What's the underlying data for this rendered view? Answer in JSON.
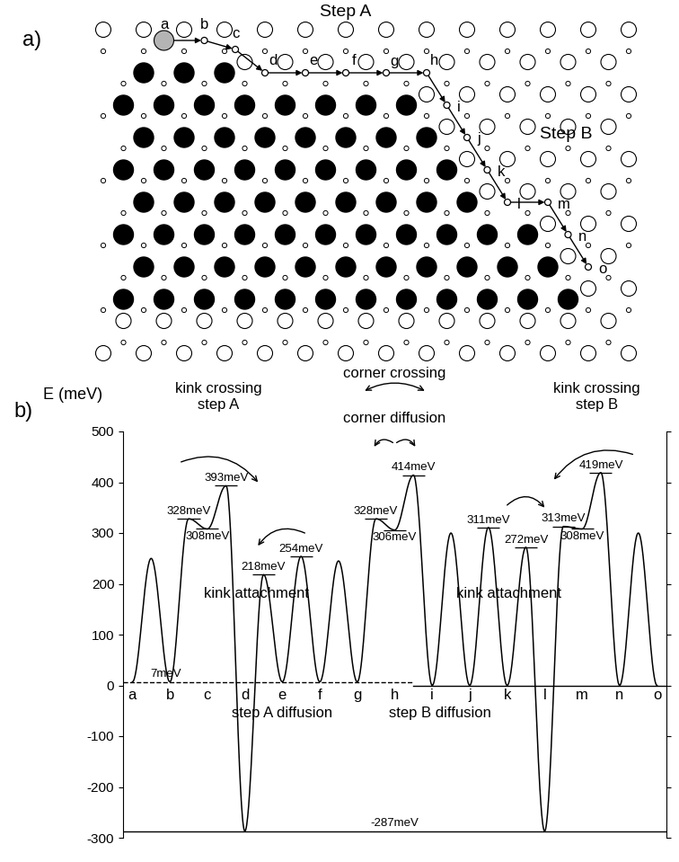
{
  "diagram": {
    "label": "a)",
    "step_labels": [
      "Step A",
      "Step B"
    ]
  },
  "chart_data": {
    "type": "line",
    "label": "b)",
    "y_label": "E (meV)",
    "color": "#000000",
    "ylim": [
      -300,
      500
    ],
    "yticks": [
      -300,
      -200,
      -100,
      0,
      100,
      200,
      300,
      400,
      500
    ],
    "tick_labels": "y",
    "categories": [
      "a",
      "b",
      "c",
      "d",
      "e",
      "f",
      "g",
      "h",
      "i",
      "j",
      "k",
      "l",
      "m",
      "n",
      "o"
    ],
    "profile": [
      {
        "site": "a",
        "value": 7
      },
      {
        "value": 250
      },
      {
        "site": "b",
        "value": 7
      },
      {
        "value": 328,
        "label": "328meV"
      },
      {
        "site": "c",
        "value": 308,
        "label": "308meV"
      },
      {
        "value": 393,
        "label": "393meV"
      },
      {
        "site": "d",
        "value": -287
      },
      {
        "value": 218,
        "label": "218meV"
      },
      {
        "site": "e",
        "value": 7
      },
      {
        "value": 254,
        "label": "254meV"
      },
      {
        "site": "f",
        "value": 7
      },
      {
        "value": 245
      },
      {
        "site": "g",
        "value": 7
      },
      {
        "value": 328,
        "label": "328meV"
      },
      {
        "site": "h",
        "value": 306,
        "label": "306meV"
      },
      {
        "value": 414,
        "label": "414meV"
      },
      {
        "site": "i",
        "value": 0
      },
      {
        "value": 300
      },
      {
        "site": "j",
        "value": 0
      },
      {
        "value": 311,
        "label": "311meV"
      },
      {
        "site": "k",
        "value": 0
      },
      {
        "value": 272,
        "label": "272meV"
      },
      {
        "site": "l",
        "value": -287
      },
      {
        "value": 313,
        "label": "313meV"
      },
      {
        "site": "m",
        "value": 308,
        "label": "308meV"
      },
      {
        "value": 419,
        "label": "419meV"
      },
      {
        "site": "n",
        "value": 0
      },
      {
        "value": 300
      },
      {
        "site": "o",
        "value": 0
      }
    ],
    "reference_lines": [
      {
        "value": 7,
        "label": "7meV",
        "line_style": "dashed",
        "from": "a",
        "to": "h"
      },
      {
        "value": 0,
        "line_style": "solid",
        "from": "i",
        "to": "o"
      },
      {
        "value": -287,
        "label": "-287meV",
        "line_style": "solid"
      }
    ],
    "annotations": [
      "kink crossing\nstep A",
      "corner crossing",
      "corner diffusion",
      "kink crossing\nstep B",
      "kink attachment",
      "kink attachment",
      "step A diffusion",
      "step B diffusion"
    ]
  }
}
